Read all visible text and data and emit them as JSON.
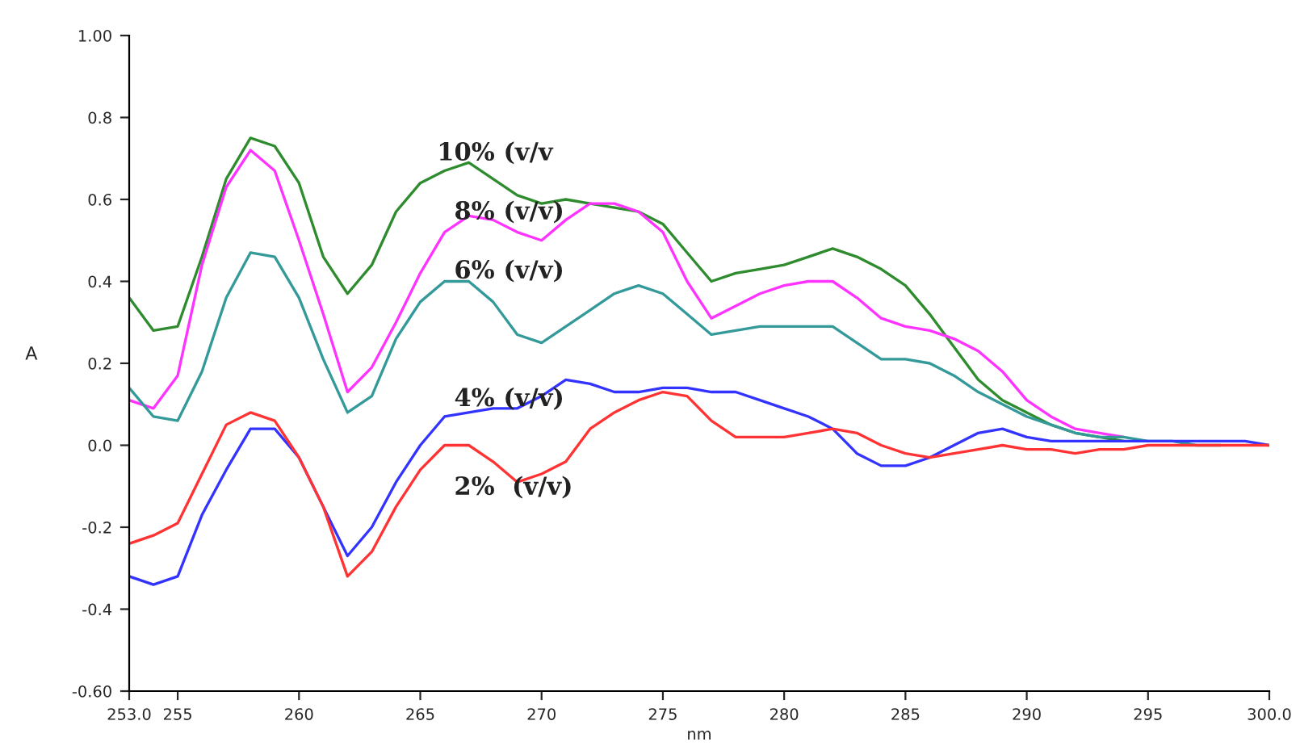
{
  "chart_data": {
    "type": "line",
    "xlabel": "nm",
    "ylabel": "A",
    "x": [
      253,
      254,
      255,
      256,
      257,
      258,
      259,
      260,
      261,
      262,
      263,
      264,
      265,
      266,
      267,
      268,
      269,
      270,
      271,
      272,
      273,
      274,
      275,
      276,
      277,
      278,
      279,
      280,
      281,
      282,
      283,
      284,
      285,
      286,
      287,
      288,
      289,
      290,
      291,
      292,
      293,
      294,
      295,
      296,
      297,
      298,
      299,
      300
    ],
    "series": [
      {
        "name": "10% (v/v",
        "color": "#2e8b2e",
        "values": [
          0.36,
          0.28,
          0.29,
          0.46,
          0.65,
          0.75,
          0.73,
          0.64,
          0.46,
          0.37,
          0.44,
          0.57,
          0.64,
          0.67,
          0.69,
          0.65,
          0.61,
          0.59,
          0.6,
          0.59,
          0.58,
          0.57,
          0.54,
          0.47,
          0.4,
          0.42,
          0.43,
          0.44,
          0.46,
          0.48,
          0.46,
          0.43,
          0.39,
          0.32,
          0.24,
          0.16,
          0.11,
          0.08,
          0.05,
          0.03,
          0.02,
          0.01,
          null,
          null,
          null,
          null,
          null,
          null
        ]
      },
      {
        "name": "8% (v/v)",
        "color": "#ff33ff",
        "values": [
          0.11,
          0.09,
          0.17,
          0.44,
          0.63,
          0.72,
          0.67,
          0.5,
          0.32,
          0.13,
          0.19,
          0.3,
          0.42,
          0.52,
          0.56,
          0.55,
          0.52,
          0.5,
          0.55,
          0.59,
          0.59,
          0.57,
          0.52,
          0.4,
          0.31,
          0.34,
          0.37,
          0.39,
          0.4,
          0.4,
          0.36,
          0.31,
          0.29,
          0.28,
          0.26,
          0.23,
          0.18,
          0.11,
          0.07,
          0.04,
          0.03,
          0.02,
          null,
          null,
          null,
          null,
          null,
          null
        ]
      },
      {
        "name": "6% (v/v)",
        "color": "#339999",
        "values": [
          0.14,
          0.07,
          0.06,
          0.18,
          0.36,
          0.47,
          0.46,
          0.36,
          0.21,
          0.08,
          0.12,
          0.26,
          0.35,
          0.4,
          0.4,
          0.35,
          0.27,
          0.25,
          0.29,
          0.33,
          0.37,
          0.39,
          0.37,
          0.32,
          0.27,
          0.28,
          0.29,
          0.29,
          0.29,
          0.29,
          0.25,
          0.21,
          0.21,
          0.2,
          0.17,
          0.13,
          0.1,
          0.07,
          0.05,
          0.03,
          0.02,
          0.02,
          0.01,
          0.01,
          0.0,
          0.0,
          null,
          null
        ]
      },
      {
        "name": "4% (v/v)",
        "color": "#3333ff",
        "values": [
          -0.32,
          -0.34,
          -0.32,
          -0.17,
          -0.06,
          0.04,
          0.04,
          -0.03,
          -0.15,
          -0.27,
          -0.2,
          -0.09,
          0.0,
          0.07,
          0.08,
          0.09,
          0.09,
          0.12,
          0.16,
          0.15,
          0.13,
          0.13,
          0.14,
          0.14,
          0.13,
          0.13,
          0.11,
          0.09,
          0.07,
          0.04,
          -0.02,
          -0.05,
          -0.05,
          -0.03,
          0.0,
          0.03,
          0.04,
          0.02,
          0.01,
          0.01,
          0.01,
          0.01,
          0.01,
          0.01,
          0.01,
          0.01,
          0.01,
          0.0
        ]
      },
      {
        "name": "2%  (v/v)",
        "color": "#ff3333",
        "values": [
          -0.24,
          -0.22,
          -0.19,
          -0.07,
          0.05,
          0.08,
          0.06,
          -0.03,
          -0.15,
          -0.32,
          -0.26,
          -0.15,
          -0.06,
          0.0,
          0.0,
          -0.04,
          -0.09,
          -0.07,
          -0.04,
          0.04,
          0.08,
          0.11,
          0.13,
          0.12,
          0.06,
          0.02,
          0.02,
          0.02,
          0.03,
          0.04,
          0.03,
          0.0,
          -0.02,
          -0.03,
          -0.02,
          -0.01,
          0.0,
          -0.01,
          -0.01,
          -0.02,
          -0.01,
          -0.01,
          0.0,
          0.0,
          0.0,
          0.0,
          0.0,
          0.0
        ]
      }
    ],
    "xlim": [
      253,
      300
    ],
    "ylim": [
      -0.6,
      1.0
    ],
    "xticks": [
      {
        "value": 253,
        "label": "253.0"
      },
      255,
      260,
      265,
      270,
      275,
      280,
      285,
      290,
      295,
      {
        "value": 300,
        "label": "300.0"
      }
    ],
    "yticks": [
      {
        "value": -0.6,
        "label": "-0.60"
      },
      {
        "value": -0.4,
        "label": "-0.4"
      },
      {
        "value": -0.2,
        "label": "-0.2"
      },
      {
        "value": 0.0,
        "label": "0.0"
      },
      {
        "value": 0.2,
        "label": "0.2"
      },
      {
        "value": 0.4,
        "label": "0.4"
      },
      {
        "value": 0.6,
        "label": "0.6"
      },
      {
        "value": 0.8,
        "label": "0.8"
      },
      {
        "value": 1.0,
        "label": "1.00"
      }
    ],
    "grid": false,
    "legend": false,
    "marker": "none",
    "line_style": "solid"
  }
}
